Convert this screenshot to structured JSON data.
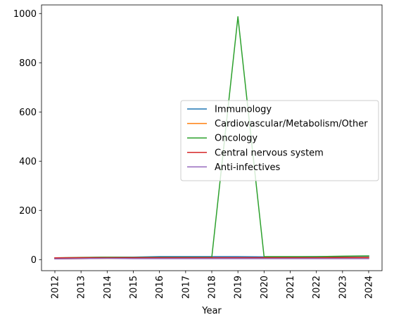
{
  "chart_data": {
    "type": "line",
    "title": "",
    "xlabel": "Year",
    "ylabel": "",
    "x": [
      "2012",
      "2013",
      "2014",
      "2015",
      "2016",
      "2017",
      "2018",
      "2019",
      "2020",
      "2021",
      "2022",
      "2023",
      "2024"
    ],
    "yticks": [
      "0",
      "200",
      "400",
      "600",
      "800",
      "1000"
    ],
    "ylim": [
      -45,
      1035
    ],
    "grid": false,
    "legend_position": "center-right",
    "series": [
      {
        "name": "Immunology",
        "color": "#1f77b4",
        "values": [
          6,
          8,
          10,
          10,
          12,
          12,
          12,
          12,
          11,
          11,
          12,
          13,
          14
        ]
      },
      {
        "name": "Cardiovascular/Metabolism/Other",
        "color": "#ff7f0e",
        "values": [
          3,
          4,
          5,
          5,
          5,
          5,
          6,
          6,
          6,
          6,
          6,
          6,
          7
        ]
      },
      {
        "name": "Oncology",
        "color": "#2ca02c",
        "values": [
          7,
          9,
          10,
          9,
          9,
          9,
          9,
          987,
          12,
          12,
          12,
          14,
          15
        ]
      },
      {
        "name": "Central nervous system",
        "color": "#d62728",
        "values": [
          7,
          8,
          8,
          8,
          8,
          8,
          8,
          8,
          8,
          8,
          8,
          9,
          9
        ]
      },
      {
        "name": "Anti-infectives",
        "color": "#9467bd",
        "values": [
          3,
          4,
          5,
          4,
          4,
          4,
          4,
          4,
          4,
          4,
          4,
          4,
          4
        ]
      }
    ]
  }
}
